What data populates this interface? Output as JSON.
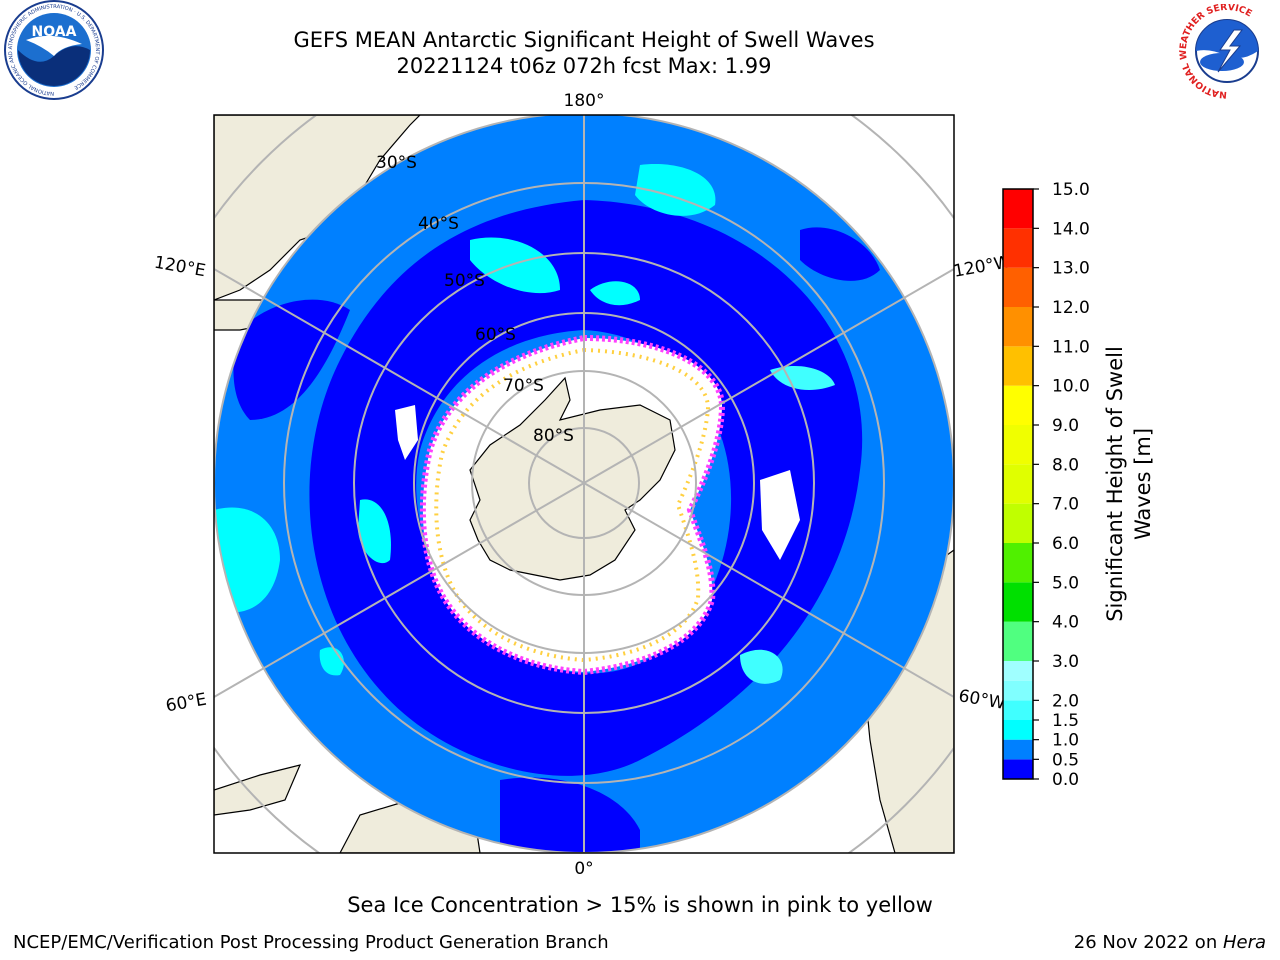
{
  "header": {
    "title_line1": "GEFS MEAN Antarctic Significant Height of Swell Waves",
    "title_line2": "20221124 t06z 072h fcst   Max: 1.99"
  },
  "logos": {
    "left": {
      "name": "noaa-logo",
      "text": "NOAA",
      "ring_text": "NATIONAL OCEANIC AND ATMOSPHERIC ADMINISTRATION · U.S. DEPARTMENT OF COMMERCE"
    },
    "right": {
      "name": "nws-logo",
      "ring_text": "NATIONAL WEATHER SERVICE"
    }
  },
  "map": {
    "projection": "south-polar-stereographic",
    "meridian_labels": {
      "top": "180°",
      "bottom": "0°",
      "upper_left": "120°E",
      "upper_right": "120°W",
      "lower_left": "60°E",
      "lower_right": "60°W"
    },
    "latitude_labels": [
      "30°S",
      "40°S",
      "50°S",
      "60°S",
      "70°S",
      "80°S"
    ],
    "colors": {
      "land": "#efecdc",
      "coast": "#000000",
      "grid": "#b4b4b4",
      "ice_free_zero": "#0000ff",
      "ice_white": "#ffffff",
      "sea_ice_pink": "#ff40ff",
      "sea_ice_yellow": "#ffd040"
    }
  },
  "colorbar": {
    "label": "Significant Height of Swell Waves [m]",
    "label_line1": "Significant Height of Swell",
    "label_line2": "Waves [m]",
    "ticks": [
      "0.0",
      "0.5",
      "1.0",
      "1.5",
      "2.0",
      "2.5",
      "3.0",
      "3.5",
      "4.0",
      "4.5",
      "5.0",
      "5.5",
      "6.0",
      "6.5",
      "7.0",
      "7.5",
      "8.0",
      "8.5",
      "9.0",
      "9.5",
      "10.0",
      "10.5",
      "11.0",
      "11.5",
      "12.0",
      "12.5",
      "13.0",
      "13.5",
      "14.0",
      "14.5",
      "15.0"
    ],
    "tick_labels_shown": [
      "0.0",
      "0.5",
      "1.0",
      "1.5",
      "2.0",
      "3.0",
      "4.0",
      "5.0",
      "6.0",
      "7.0",
      "8.0",
      "9.0",
      "10.0",
      "11.0",
      "12.0",
      "13.0",
      "14.0",
      "15.0"
    ],
    "bins": [
      {
        "from": 0.0,
        "to": 0.5,
        "color": "#0000ff"
      },
      {
        "from": 0.5,
        "to": 1.0,
        "color": "#0080ff"
      },
      {
        "from": 1.0,
        "to": 1.5,
        "color": "#00ffff"
      },
      {
        "from": 1.5,
        "to": 2.0,
        "color": "#40ffff"
      },
      {
        "from": 2.0,
        "to": 2.5,
        "color": "#80ffff"
      },
      {
        "from": 2.5,
        "to": 3.0,
        "color": "#a0ffff"
      },
      {
        "from": 3.0,
        "to": 4.0,
        "color": "#50ff80"
      },
      {
        "from": 4.0,
        "to": 5.0,
        "color": "#00e000"
      },
      {
        "from": 5.0,
        "to": 6.0,
        "color": "#50f000"
      },
      {
        "from": 6.0,
        "to": 7.0,
        "color": "#c0ff00"
      },
      {
        "from": 7.0,
        "to": 8.0,
        "color": "#e0ff00"
      },
      {
        "from": 8.0,
        "to": 9.0,
        "color": "#f0ff00"
      },
      {
        "from": 9.0,
        "to": 10.0,
        "color": "#ffff00"
      },
      {
        "from": 10.0,
        "to": 11.0,
        "color": "#ffc000"
      },
      {
        "from": 11.0,
        "to": 12.0,
        "color": "#ff9000"
      },
      {
        "from": 12.0,
        "to": 13.0,
        "color": "#ff6000"
      },
      {
        "from": 13.0,
        "to": 14.0,
        "color": "#ff3000"
      },
      {
        "from": 14.0,
        "to": 15.0,
        "color": "#ff0000"
      }
    ]
  },
  "caption": "Sea Ice Concentration > 15% is shown in pink to yellow",
  "footer": {
    "left": "NCEP/EMC/Verification Post Processing Product Generation Branch",
    "date": "26 Nov 2022 on ",
    "host": "Hera"
  }
}
